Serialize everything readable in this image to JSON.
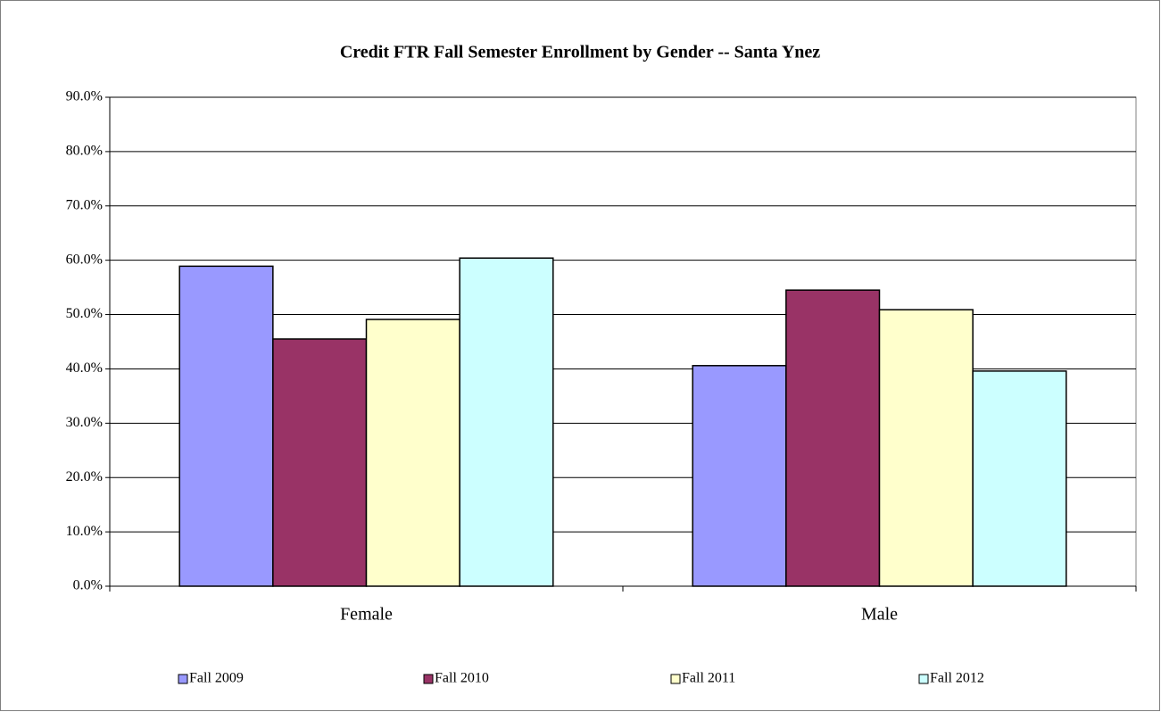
{
  "chart_data": {
    "type": "bar",
    "title": "Credit FTR Fall Semester Enrollment by Gender -- Santa Ynez",
    "categories": [
      "Female",
      "Male"
    ],
    "series": [
      {
        "name": "Fall 2009",
        "color": "#9999ff",
        "values": [
          58.9,
          40.6
        ]
      },
      {
        "name": "Fall 2010",
        "color": "#993366",
        "values": [
          45.5,
          54.5
        ]
      },
      {
        "name": "Fall 2011",
        "color": "#ffffcc",
        "values": [
          49.1,
          50.9
        ]
      },
      {
        "name": "Fall 2012",
        "color": "#ccffff",
        "values": [
          60.4,
          39.6
        ]
      }
    ],
    "ylim": [
      0,
      90
    ],
    "yticks": [
      {
        "value": 0,
        "label": "0.0%"
      },
      {
        "value": 10,
        "label": "10.0%"
      },
      {
        "value": 20,
        "label": "20.0%"
      },
      {
        "value": 30,
        "label": "30.0%"
      },
      {
        "value": 40,
        "label": "40.0%"
      },
      {
        "value": 50,
        "label": "50.0%"
      },
      {
        "value": 60,
        "label": "60.0%"
      },
      {
        "value": 70,
        "label": "70.0%"
      },
      {
        "value": 80,
        "label": "80.0%"
      },
      {
        "value": 90,
        "label": "90.0%"
      }
    ],
    "grid": true,
    "legend": "bottom"
  }
}
